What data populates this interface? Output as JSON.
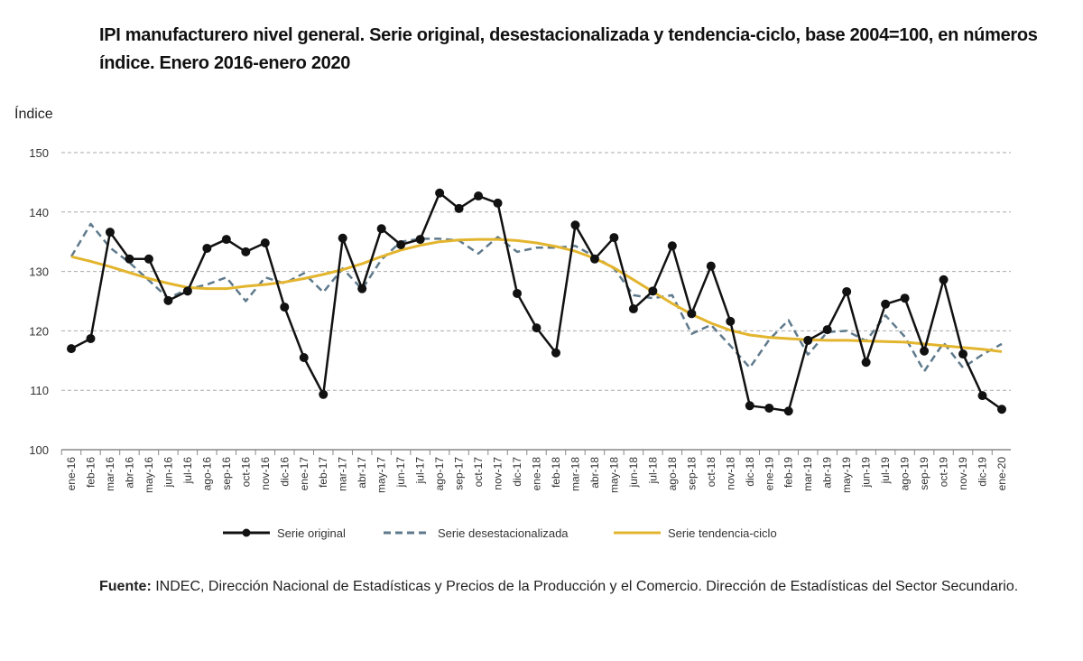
{
  "chart_data": {
    "type": "line",
    "title": "IPI manufacturero nivel general. Serie original, desestacionalizada y tendencia-ciclo, base 2004=100, en números índice. Enero 2016-enero 2020",
    "ylabel": "Índice",
    "xlabel": "",
    "ylim": [
      100,
      150
    ],
    "yticks": [
      100,
      110,
      120,
      130,
      140,
      150
    ],
    "grid": true,
    "legend": "bottom",
    "categories": [
      "ene-16",
      "feb-16",
      "mar-16",
      "abr-16",
      "may-16",
      "jun-16",
      "jul-16",
      "ago-16",
      "sep-16",
      "oct-16",
      "nov-16",
      "dic-16",
      "ene-17",
      "feb-17",
      "mar-17",
      "abr-17",
      "may-17",
      "jun-17",
      "jul-17",
      "ago-17",
      "sep-17",
      "oct-17",
      "nov-17",
      "dic-17",
      "ene-18",
      "feb-18",
      "mar-18",
      "abr-18",
      "may-18",
      "jun-18",
      "jul-18",
      "ago-18",
      "sep-18",
      "oct-18",
      "nov-18",
      "dic-18",
      "ene-19",
      "feb-19",
      "mar-19",
      "abr-19",
      "may-19",
      "jun-19",
      "jul-19",
      "ago-19",
      "sep-19",
      "oct-19",
      "nov-19",
      "dic-19",
      "ene-20"
    ],
    "series": [
      {
        "name": "Serie original",
        "color": "#111111",
        "style": "solid-markers",
        "values": [
          117.0,
          118.7,
          136.6,
          132.1,
          132.1,
          125.1,
          126.7,
          133.9,
          135.4,
          133.3,
          134.8,
          124.0,
          115.5,
          109.3,
          135.6,
          127.1,
          137.2,
          134.5,
          135.4,
          143.2,
          140.6,
          142.7,
          141.5,
          126.3,
          120.5,
          116.3,
          137.8,
          132.1,
          135.7,
          123.7,
          126.7,
          134.3,
          122.9,
          130.9,
          121.6,
          107.4,
          107.0,
          106.5,
          118.4,
          120.2,
          126.6,
          114.7,
          124.5,
          125.5,
          116.6,
          128.6,
          116.1,
          109.1,
          106.8
        ]
      },
      {
        "name": "Serie desestacionalizada",
        "color": "#5f7a8c",
        "style": "dashed",
        "values": [
          132.5,
          138.0,
          134.0,
          131.5,
          128.5,
          125.5,
          127.0,
          127.8,
          129.0,
          125.0,
          129.0,
          128.0,
          129.7,
          126.5,
          130.5,
          127.0,
          132.0,
          135.0,
          135.5,
          135.5,
          135.2,
          133.0,
          135.8,
          133.3,
          134.0,
          134.0,
          134.3,
          132.5,
          130.5,
          126.0,
          125.5,
          126.0,
          119.5,
          121.0,
          117.5,
          113.8,
          118.5,
          121.8,
          116.0,
          119.8,
          120.0,
          118.3,
          122.6,
          119.0,
          113.2,
          118.0,
          113.8,
          116.0,
          117.8
        ]
      },
      {
        "name": "Serie tendencia-ciclo",
        "color": "#e3b52e",
        "style": "solid",
        "values": [
          132.5,
          131.7,
          130.8,
          129.8,
          128.8,
          128.0,
          127.3,
          127.1,
          127.1,
          127.5,
          127.8,
          128.2,
          128.8,
          129.5,
          130.3,
          131.3,
          132.5,
          133.6,
          134.4,
          135.0,
          135.3,
          135.4,
          135.4,
          135.2,
          134.8,
          134.2,
          133.4,
          132.2,
          130.6,
          128.6,
          126.6,
          124.6,
          122.8,
          121.3,
          120.1,
          119.3,
          118.9,
          118.7,
          118.5,
          118.4,
          118.4,
          118.3,
          118.2,
          118.1,
          117.8,
          117.5,
          117.2,
          116.9,
          116.5
        ]
      }
    ]
  },
  "source": {
    "label": "Fuente:",
    "text": " INDEC, Dirección Nacional de Estadísticas y Precios de la Producción y el Comercio. Dirección de Estadísticas del Sector Secundario."
  }
}
